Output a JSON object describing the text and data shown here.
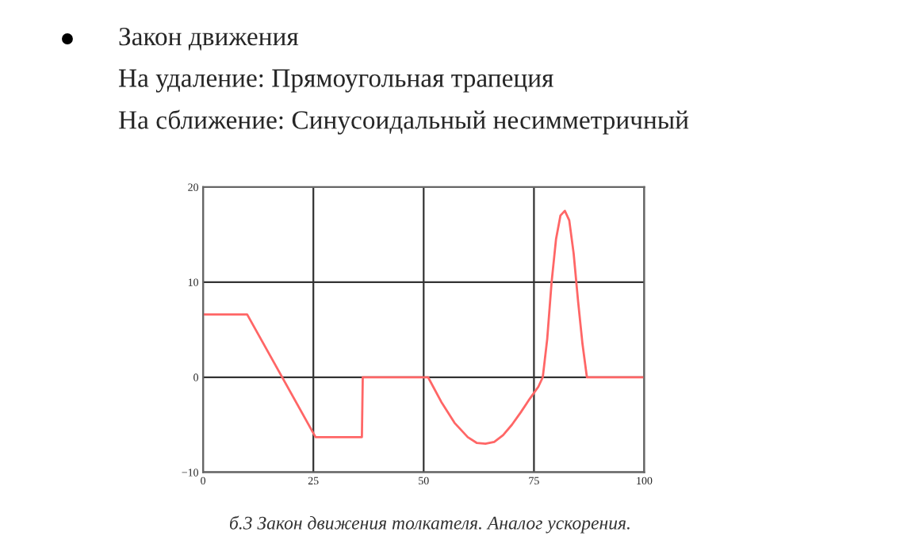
{
  "chart_data": {
    "type": "line",
    "title": "Закон движения",
    "annotations": [
      "На удаление: Прямоугольная трапеция",
      "На сближение: Синусоидальный несимметричный",
      "б.3 Закон движения толкателя. Аналог ускорения."
    ],
    "series": [
      {
        "color": "#ff6666",
        "x": [
          0,
          10,
          25.5,
          36,
          36.2,
          51,
          54,
          57,
          60,
          62,
          64,
          66,
          68,
          70,
          72,
          74,
          76,
          77,
          78,
          79,
          80,
          81,
          82,
          83,
          84,
          85,
          86,
          87,
          100
        ],
        "values": [
          6.6,
          6.6,
          -6.3,
          -6.3,
          0,
          0,
          -2.6,
          -4.8,
          -6.3,
          -6.9,
          -7.0,
          -6.8,
          -6.1,
          -5.0,
          -3.7,
          -2.3,
          -1.0,
          0,
          4,
          10,
          14.5,
          17,
          17.5,
          16.5,
          13,
          8,
          3.5,
          0,
          0
        ]
      }
    ],
    "xlim": [
      0,
      100
    ],
    "ylim": [
      -10,
      20
    ],
    "xticks": [
      0,
      25,
      50,
      75,
      100
    ],
    "yticks": [
      {
        "value": -10,
        "label": "−10"
      },
      0,
      10,
      20
    ],
    "grid": true,
    "legend": false
  }
}
